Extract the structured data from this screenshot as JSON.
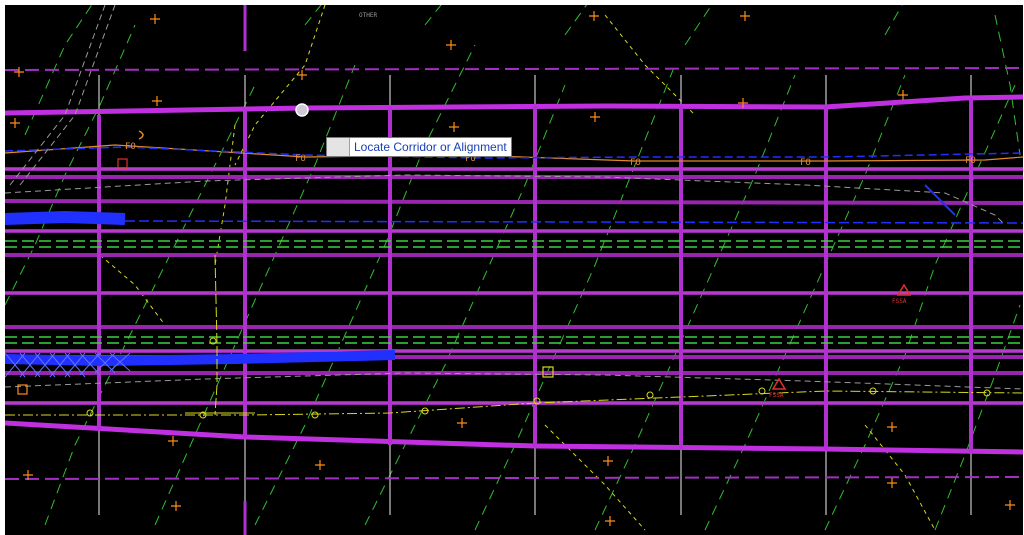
{
  "window": {
    "title": ""
  },
  "tooltip": {
    "label": "Locate Corridor or Alignment"
  },
  "map_labels": {
    "other": "OTHER",
    "fo": "FO",
    "fssa": "FSSA"
  },
  "colors": {
    "background": "#000000",
    "corridor": "#c030e0",
    "contour": "#2fbf2f",
    "fiber_optic": "#e08a2a",
    "water": "#2030ff",
    "gas": "#d8d820",
    "survey_point": "#ff8c1a",
    "stake_line": "#c8c8c8",
    "tooltip_text": "#1a3fb0"
  },
  "icons": {
    "cursor": "circle-cursor-icon",
    "survey_points": "plus-marker-icon",
    "hydrant": "triangle-marker-icon"
  }
}
